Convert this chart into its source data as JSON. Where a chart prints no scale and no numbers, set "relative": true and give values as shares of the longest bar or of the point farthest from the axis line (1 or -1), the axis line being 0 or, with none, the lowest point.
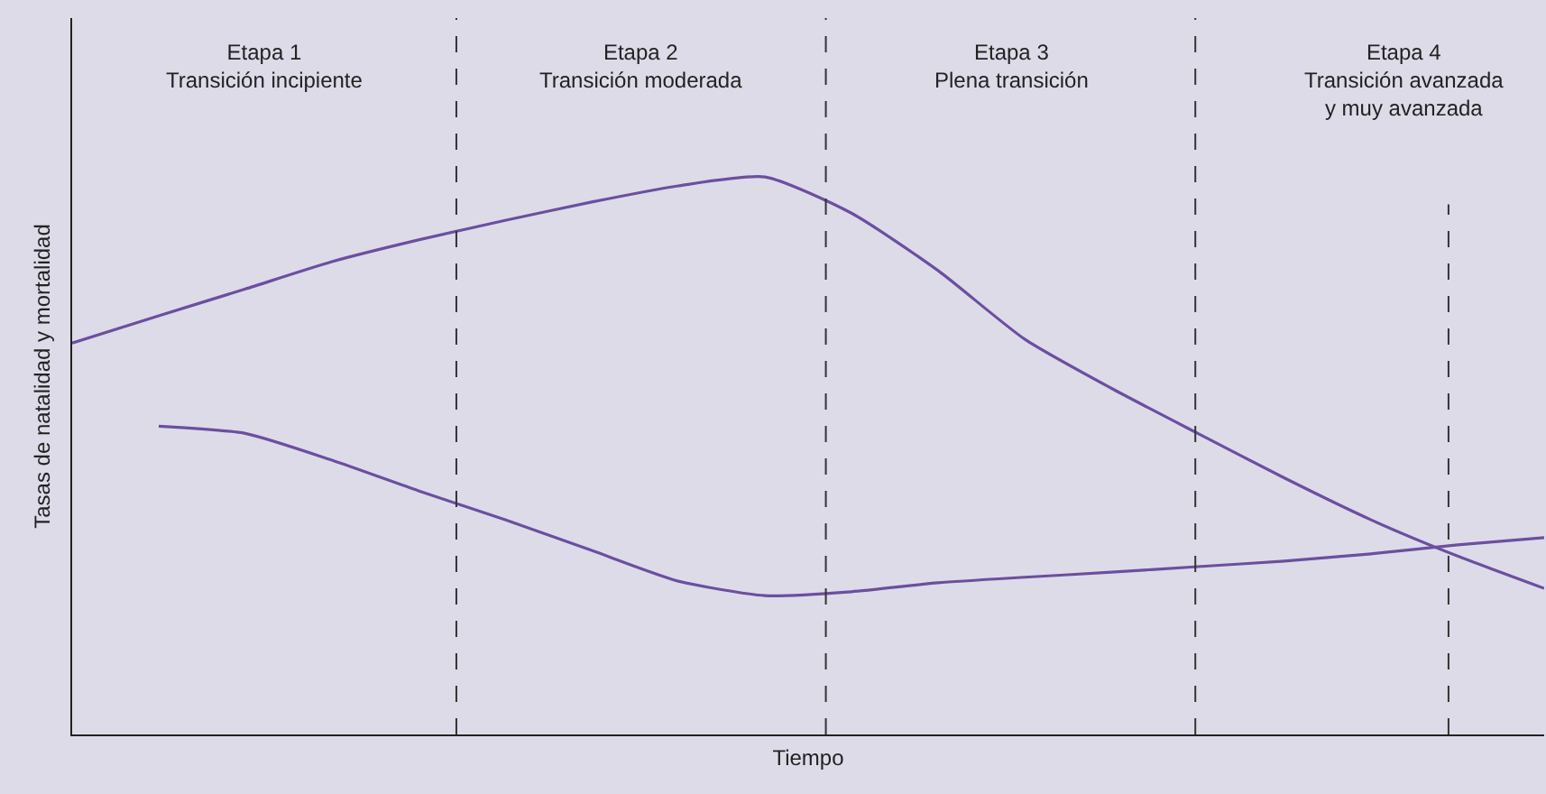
{
  "chart_data": {
    "type": "line",
    "relative": true,
    "xlabel": "Tiempo",
    "ylabel": "Tasas de natalidad y mortalidad",
    "categories": [
      null,
      null,
      null,
      null,
      null,
      null,
      null,
      null,
      null,
      null,
      null,
      null,
      null,
      null,
      null,
      null,
      null,
      null
    ],
    "series": [
      {
        "color": "#6b4fa0",
        "values": [
          0.702,
          0.751,
          0.799,
          0.848,
          0.887,
          0.922,
          0.955,
          0.984,
          1.0,
          0.935,
          0.832,
          0.709,
          0.621,
          0.54,
          0.46,
          0.385,
          0.32,
          0.262
        ]
      },
      {
        "color": "#6b4fa0",
        "values": [
          null,
          0.553,
          0.54,
          0.492,
          0.437,
          0.385,
          0.33,
          0.275,
          0.249,
          0.256,
          0.272,
          0.282,
          0.291,
          0.301,
          0.311,
          0.324,
          0.34,
          0.353
        ]
      }
    ],
    "annotations": [
      "Etapa 1\nTransición incipiente",
      "Etapa 2\nTransición moderada",
      "Etapa 3\nPlena transición",
      "Etapa 4\nTransición avanzada\ny muy avanzada"
    ],
    "marker": "none",
    "line_style": "solid",
    "tick_labels": false
  }
}
